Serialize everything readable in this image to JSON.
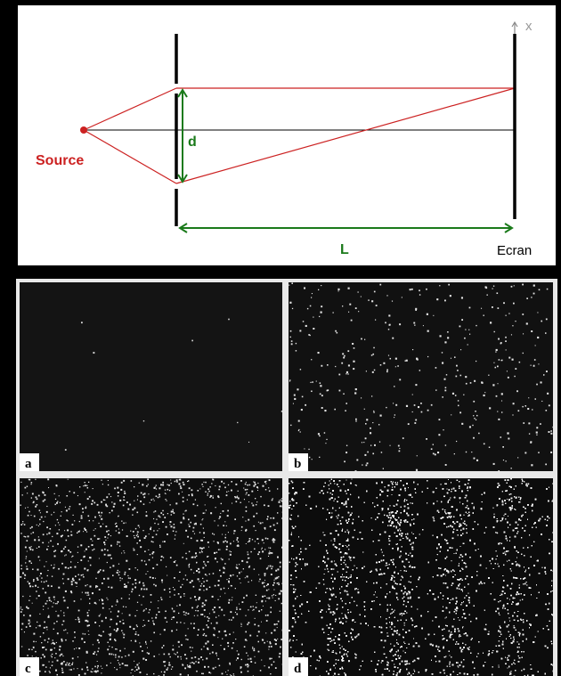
{
  "diagram": {
    "source_label": "Source",
    "slit_gap_label": "d",
    "distance_label": "L",
    "screen_label": "Ecran",
    "axis_label": "x",
    "colors": {
      "beam": "#cc2222",
      "measure": "#1a7a1a",
      "source_text": "#cc2222",
      "frame": "#ffffff"
    }
  },
  "panels": [
    {
      "label": "a",
      "dot_count": 9,
      "fringes": false
    },
    {
      "label": "b",
      "dot_count": 420,
      "fringes": false
    },
    {
      "label": "c",
      "dot_count": 1700,
      "fringes": false
    },
    {
      "label": "d",
      "dot_count": 16000,
      "fringes": true
    }
  ]
}
